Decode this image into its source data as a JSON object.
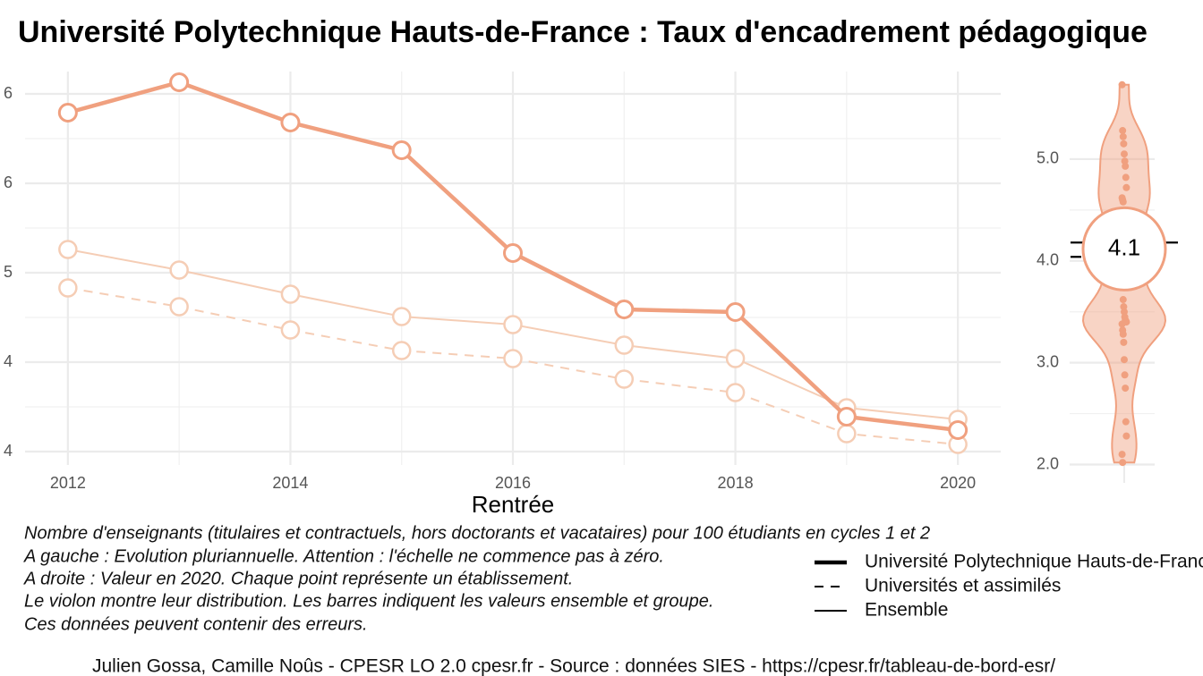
{
  "title": "Université Polytechnique Hauts-de-France  :  Taux d'encadrement pédagogique",
  "notes": [
    "Nombre d'enseignants (titulaires et contractuels, hors doctorants et vacataires) pour 100 étudiants en cycles 1 et 2",
    "A gauche : Evolution pluriannuelle. Attention : l'échelle ne commence pas à zéro.",
    "A droite : Valeur en 2020. Chaque point représente un établissement.",
    "Le violon montre leur distribution. Les barres indiquent les valeurs ensemble et groupe.",
    "Ces données peuvent contenir des erreurs."
  ],
  "credit": "Julien Gossa, Camille Noûs - CPESR LO 2.0 cpesr.fr - Source : données SIES - https://cpesr.fr/tableau-de-bord-esr/",
  "chart_data": [
    {
      "type": "line",
      "x_label": "Rentrée",
      "x": [
        2012,
        2013,
        2014,
        2015,
        2016,
        2017,
        2018,
        2019,
        2020
      ],
      "xlim": [
        2011.615,
        2020.385
      ],
      "xticks": [
        2012,
        2014,
        2016,
        2018,
        2020
      ],
      "ylim": [
        3.925,
        6.125
      ],
      "yticks": [
        {
          "value": 4.0,
          "label": "4"
        },
        {
          "value": 4.5,
          "label": "4"
        },
        {
          "value": 5.0,
          "label": "5"
        },
        {
          "value": 5.5,
          "label": "6"
        },
        {
          "value": 6.0,
          "label": "6"
        }
      ],
      "grid": true,
      "series": [
        {
          "name": "Université Polytechnique Hauts-de-France",
          "color": "#f0a07f",
          "style": "thick",
          "values": [
            5.895,
            6.065,
            5.84,
            5.685,
            5.11,
            4.795,
            4.78,
            4.195,
            4.12
          ]
        },
        {
          "name": "Universités et assimilés",
          "color": "#f5cdb5",
          "style": "dashed",
          "values": [
            4.915,
            4.81,
            4.68,
            4.565,
            4.52,
            4.405,
            4.33,
            4.1,
            4.04
          ]
        },
        {
          "name": "Ensemble",
          "color": "#f5cdb5",
          "style": "solid",
          "values": [
            5.13,
            5.015,
            4.88,
            4.755,
            4.71,
            4.595,
            4.52,
            4.245,
            4.18
          ]
        }
      ]
    },
    {
      "type": "violin",
      "color": "#f0a07f",
      "ylim": [
        1.82,
        5.86
      ],
      "yticks": [
        {
          "value": 2,
          "label": "2.0"
        },
        {
          "value": 3,
          "label": "3.0"
        },
        {
          "value": 4,
          "label": "4.0"
        },
        {
          "value": 5,
          "label": "5.0"
        }
      ],
      "highlight": 4.1,
      "values": [
        5.73,
        5.28,
        5.22,
        5.15,
        5.05,
        4.98,
        4.93,
        4.82,
        4.72,
        4.62,
        4.6,
        4.58,
        4.5,
        4.3,
        4.2,
        4.15,
        4.05,
        3.95,
        3.85,
        3.75,
        3.62,
        3.55,
        3.5,
        3.45,
        3.42,
        3.41,
        3.4,
        3.38,
        3.32,
        3.28,
        3.2,
        3.03,
        2.88,
        2.75,
        2.42,
        2.28,
        2.1,
        2.02
      ]
    }
  ]
}
